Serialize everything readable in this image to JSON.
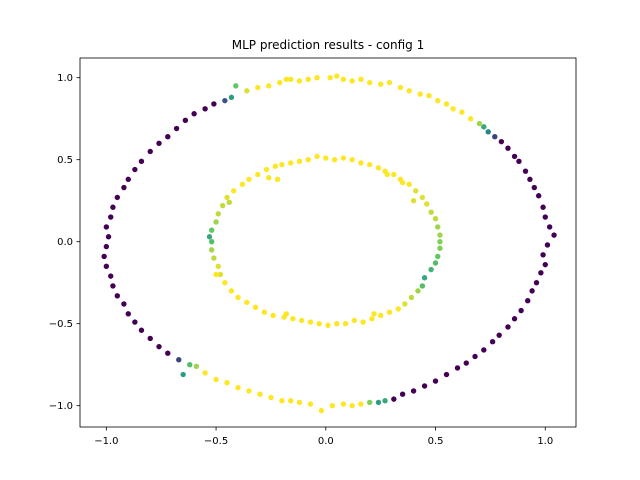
{
  "chart_data": {
    "type": "scatter",
    "title": "MLP prediction results - config 1",
    "xlabel": "",
    "ylabel": "",
    "xlim": [
      -1.12,
      1.14
    ],
    "ylim": [
      -1.13,
      1.12
    ],
    "xticks": [
      -1.0,
      -0.5,
      0.0,
      0.5,
      1.0
    ],
    "xtick_labels": [
      "−1.0",
      "−0.5",
      "0.0",
      "0.5",
      "1.0"
    ],
    "yticks": [
      -1.0,
      -0.5,
      0.0,
      0.5,
      1.0
    ],
    "ytick_labels": [
      "−1.0",
      "−0.5",
      "0.0",
      "0.5",
      "1.0"
    ],
    "grid": false,
    "colormap": "viridis",
    "color_scale": "predicted probability (0 = dark purple, 1 = yellow)",
    "colors": {
      "low": "#440154",
      "mid": "#21918c",
      "high": "#fde725"
    },
    "outer_ring_points": [
      [
        0.02,
        1.0,
        1.0
      ],
      [
        0.05,
        1.01,
        1.0
      ],
      [
        0.08,
        0.99,
        1.0
      ],
      [
        -0.04,
        1.0,
        1.0
      ],
      [
        -0.08,
        0.99,
        1.0
      ],
      [
        -0.12,
        0.98,
        1.0
      ],
      [
        -0.16,
        0.99,
        1.0
      ],
      [
        0.12,
        0.98,
        1.0
      ],
      [
        0.16,
        0.99,
        1.0
      ],
      [
        0.2,
        0.97,
        1.0
      ],
      [
        0.25,
        0.96,
        1.0
      ],
      [
        0.29,
        0.97,
        1.0
      ],
      [
        0.34,
        0.94,
        1.0
      ],
      [
        0.38,
        0.92,
        1.0
      ],
      [
        0.43,
        0.9,
        1.0
      ],
      [
        0.47,
        0.89,
        1.0
      ],
      [
        0.51,
        0.86,
        1.0
      ],
      [
        0.55,
        0.84,
        1.0
      ],
      [
        0.58,
        0.81,
        1.0
      ],
      [
        0.62,
        0.79,
        1.0
      ],
      [
        0.66,
        0.75,
        1.0
      ],
      [
        0.7,
        0.72,
        0.85
      ],
      [
        0.72,
        0.7,
        0.6
      ],
      [
        0.74,
        0.67,
        0.45
      ],
      [
        0.77,
        0.64,
        0.2
      ],
      [
        0.8,
        0.61,
        0.0
      ],
      [
        0.83,
        0.57,
        0.0
      ],
      [
        0.86,
        0.52,
        0.0
      ],
      [
        0.88,
        0.49,
        0.0
      ],
      [
        0.91,
        0.43,
        0.0
      ],
      [
        0.93,
        0.38,
        0.0
      ],
      [
        0.95,
        0.33,
        0.0
      ],
      [
        0.97,
        0.28,
        0.0
      ],
      [
        0.99,
        0.21,
        0.0
      ],
      [
        1.0,
        0.15,
        0.0
      ],
      [
        1.02,
        0.09,
        0.0
      ],
      [
        1.04,
        0.04,
        0.0
      ],
      [
        1.01,
        -0.02,
        0.0
      ],
      [
        0.99,
        -0.08,
        0.0
      ],
      [
        1.0,
        -0.14,
        0.0
      ],
      [
        0.98,
        -0.19,
        0.0
      ],
      [
        0.96,
        -0.25,
        0.0
      ],
      [
        0.94,
        -0.3,
        0.0
      ],
      [
        0.92,
        -0.36,
        0.0
      ],
      [
        0.89,
        -0.42,
        0.0
      ],
      [
        0.86,
        -0.47,
        0.0
      ],
      [
        0.83,
        -0.52,
        0.0
      ],
      [
        0.79,
        -0.57,
        0.0
      ],
      [
        0.76,
        -0.61,
        0.0
      ],
      [
        0.72,
        -0.66,
        0.0
      ],
      [
        0.68,
        -0.7,
        0.0
      ],
      [
        0.64,
        -0.74,
        0.0
      ],
      [
        0.6,
        -0.77,
        0.0
      ],
      [
        0.55,
        -0.81,
        0.0
      ],
      [
        0.5,
        -0.85,
        0.0
      ],
      [
        0.45,
        -0.88,
        0.0
      ],
      [
        0.4,
        -0.91,
        0.0
      ],
      [
        0.35,
        -0.93,
        0.0
      ],
      [
        0.31,
        -0.96,
        0.0
      ],
      [
        0.27,
        -0.97,
        0.6
      ],
      [
        0.24,
        -0.98,
        0.55
      ],
      [
        0.2,
        -0.98,
        0.8
      ],
      [
        0.16,
        -0.99,
        1.0
      ],
      [
        0.12,
        -1.0,
        1.0
      ],
      [
        0.08,
        -0.99,
        1.0
      ],
      [
        0.03,
        -1.0,
        1.0
      ],
      [
        -0.02,
        -1.03,
        1.0
      ],
      [
        -0.07,
        -0.99,
        1.0
      ],
      [
        -0.12,
        -0.98,
        1.0
      ],
      [
        -0.16,
        -0.97,
        1.0
      ],
      [
        -0.2,
        -0.97,
        1.0
      ],
      [
        -0.25,
        -0.95,
        1.0
      ],
      [
        -0.3,
        -0.93,
        1.0
      ],
      [
        -0.35,
        -0.91,
        1.0
      ],
      [
        -0.4,
        -0.89,
        1.0
      ],
      [
        -0.45,
        -0.86,
        1.0
      ],
      [
        -0.5,
        -0.84,
        1.0
      ],
      [
        -0.55,
        -0.8,
        1.0
      ],
      [
        -0.59,
        -0.76,
        0.85
      ],
      [
        -0.62,
        -0.75,
        0.7
      ],
      [
        -0.65,
        -0.81,
        0.55
      ],
      [
        -0.67,
        -0.72,
        0.2
      ],
      [
        -0.72,
        -0.68,
        0.0
      ],
      [
        -0.76,
        -0.64,
        0.0
      ],
      [
        -0.8,
        -0.59,
        0.0
      ],
      [
        -0.84,
        -0.54,
        0.0
      ],
      [
        -0.87,
        -0.49,
        0.0
      ],
      [
        -0.9,
        -0.44,
        0.0
      ],
      [
        -0.92,
        -0.38,
        0.0
      ],
      [
        -0.95,
        -0.33,
        0.0
      ],
      [
        -0.97,
        -0.27,
        0.0
      ],
      [
        -0.98,
        -0.21,
        0.0
      ],
      [
        -1.0,
        -0.15,
        0.0
      ],
      [
        -1.01,
        -0.09,
        0.0
      ],
      [
        -1.0,
        -0.03,
        0.0
      ],
      [
        -0.99,
        0.03,
        0.0
      ],
      [
        -1.0,
        0.09,
        0.0
      ],
      [
        -0.98,
        0.15,
        0.0
      ],
      [
        -0.97,
        0.21,
        0.0
      ],
      [
        -0.95,
        0.27,
        0.0
      ],
      [
        -0.92,
        0.33,
        0.0
      ],
      [
        -0.9,
        0.38,
        0.0
      ],
      [
        -0.87,
        0.44,
        0.0
      ],
      [
        -0.84,
        0.49,
        0.0
      ],
      [
        -0.8,
        0.55,
        0.0
      ],
      [
        -0.76,
        0.6,
        0.0
      ],
      [
        -0.72,
        0.64,
        0.0
      ],
      [
        -0.68,
        0.69,
        0.0
      ],
      [
        -0.64,
        0.74,
        0.0
      ],
      [
        -0.6,
        0.78,
        0.0
      ],
      [
        -0.55,
        0.81,
        0.0
      ],
      [
        -0.51,
        0.84,
        0.0
      ],
      [
        -0.46,
        0.86,
        0.25
      ],
      [
        -0.43,
        0.88,
        0.55
      ],
      [
        -0.41,
        0.95,
        0.75
      ],
      [
        -0.36,
        0.92,
        0.95
      ],
      [
        -0.31,
        0.94,
        1.0
      ],
      [
        -0.26,
        0.95,
        1.0
      ],
      [
        -0.21,
        0.97,
        1.0
      ],
      [
        -0.18,
        0.99,
        1.0
      ]
    ],
    "inner_ring_points": [
      [
        0.0,
        0.51,
        1.0
      ],
      [
        0.04,
        0.5,
        1.0
      ],
      [
        0.08,
        0.51,
        1.0
      ],
      [
        0.12,
        0.5,
        1.0
      ],
      [
        -0.04,
        0.52,
        1.0
      ],
      [
        -0.08,
        0.5,
        1.0
      ],
      [
        -0.12,
        0.49,
        1.0
      ],
      [
        -0.16,
        0.48,
        1.0
      ],
      [
        -0.2,
        0.47,
        1.0
      ],
      [
        0.16,
        0.48,
        1.0
      ],
      [
        0.2,
        0.47,
        1.0
      ],
      [
        0.24,
        0.45,
        1.0
      ],
      [
        0.27,
        0.43,
        1.0
      ],
      [
        0.31,
        0.41,
        1.0
      ],
      [
        0.34,
        0.38,
        1.0
      ],
      [
        0.38,
        0.35,
        1.0
      ],
      [
        0.41,
        0.31,
        0.95
      ],
      [
        0.44,
        0.27,
        0.95
      ],
      [
        0.46,
        0.23,
        0.95
      ],
      [
        0.48,
        0.18,
        0.9
      ],
      [
        0.5,
        0.14,
        0.9
      ],
      [
        0.51,
        0.09,
        0.85
      ],
      [
        0.52,
        0.04,
        0.85
      ],
      [
        0.52,
        0.0,
        0.8
      ],
      [
        0.52,
        -0.04,
        0.8
      ],
      [
        0.51,
        -0.09,
        0.75
      ],
      [
        0.5,
        -0.13,
        0.7
      ],
      [
        0.48,
        -0.17,
        0.65
      ],
      [
        0.45,
        -0.22,
        0.6
      ],
      [
        0.44,
        -0.27,
        0.7
      ],
      [
        0.42,
        -0.3,
        0.85
      ],
      [
        0.39,
        -0.34,
        0.9
      ],
      [
        0.36,
        -0.38,
        0.95
      ],
      [
        0.33,
        -0.41,
        1.0
      ],
      [
        0.29,
        -0.43,
        1.0
      ],
      [
        0.25,
        -0.45,
        1.0
      ],
      [
        0.21,
        -0.47,
        1.0
      ],
      [
        0.17,
        -0.49,
        1.0
      ],
      [
        0.13,
        -0.48,
        1.0
      ],
      [
        0.09,
        -0.5,
        1.0
      ],
      [
        0.05,
        -0.5,
        1.0
      ],
      [
        0.01,
        -0.51,
        1.0
      ],
      [
        -0.03,
        -0.5,
        1.0
      ],
      [
        -0.07,
        -0.49,
        1.0
      ],
      [
        -0.11,
        -0.48,
        1.0
      ],
      [
        -0.15,
        -0.47,
        1.0
      ],
      [
        -0.19,
        -0.46,
        1.0
      ],
      [
        -0.24,
        -0.45,
        1.0
      ],
      [
        -0.28,
        -0.43,
        1.0
      ],
      [
        -0.32,
        -0.4,
        1.0
      ],
      [
        -0.36,
        -0.37,
        1.0
      ],
      [
        -0.4,
        -0.34,
        1.0
      ],
      [
        -0.43,
        -0.3,
        1.0
      ],
      [
        -0.46,
        -0.25,
        1.0
      ],
      [
        -0.48,
        -0.2,
        0.95
      ],
      [
        -0.49,
        -0.15,
        0.95
      ],
      [
        -0.51,
        -0.1,
        0.9
      ],
      [
        -0.52,
        -0.05,
        0.85
      ],
      [
        -0.52,
        0.0,
        0.7
      ],
      [
        -0.53,
        0.03,
        0.6
      ],
      [
        -0.52,
        0.07,
        0.75
      ],
      [
        -0.5,
        0.12,
        0.85
      ],
      [
        -0.49,
        0.17,
        0.9
      ],
      [
        -0.47,
        0.22,
        0.9
      ],
      [
        -0.45,
        0.27,
        0.95
      ],
      [
        -0.42,
        0.31,
        1.0
      ],
      [
        -0.38,
        0.35,
        1.0
      ],
      [
        -0.35,
        0.38,
        1.0
      ],
      [
        -0.31,
        0.41,
        1.0
      ],
      [
        -0.27,
        0.44,
        1.0
      ],
      [
        -0.23,
        0.46,
        1.0
      ],
      [
        -0.22,
        0.38,
        1.0
      ],
      [
        0.35,
        0.36,
        1.0
      ],
      [
        0.28,
        0.41,
        1.0
      ],
      [
        -0.26,
        0.39,
        1.0
      ],
      [
        0.4,
        0.25,
        0.95
      ],
      [
        -0.44,
        0.24,
        0.9
      ],
      [
        -0.5,
        -0.2,
        1.0
      ],
      [
        0.22,
        -0.44,
        1.0
      ],
      [
        -0.18,
        -0.44,
        1.0
      ]
    ]
  }
}
